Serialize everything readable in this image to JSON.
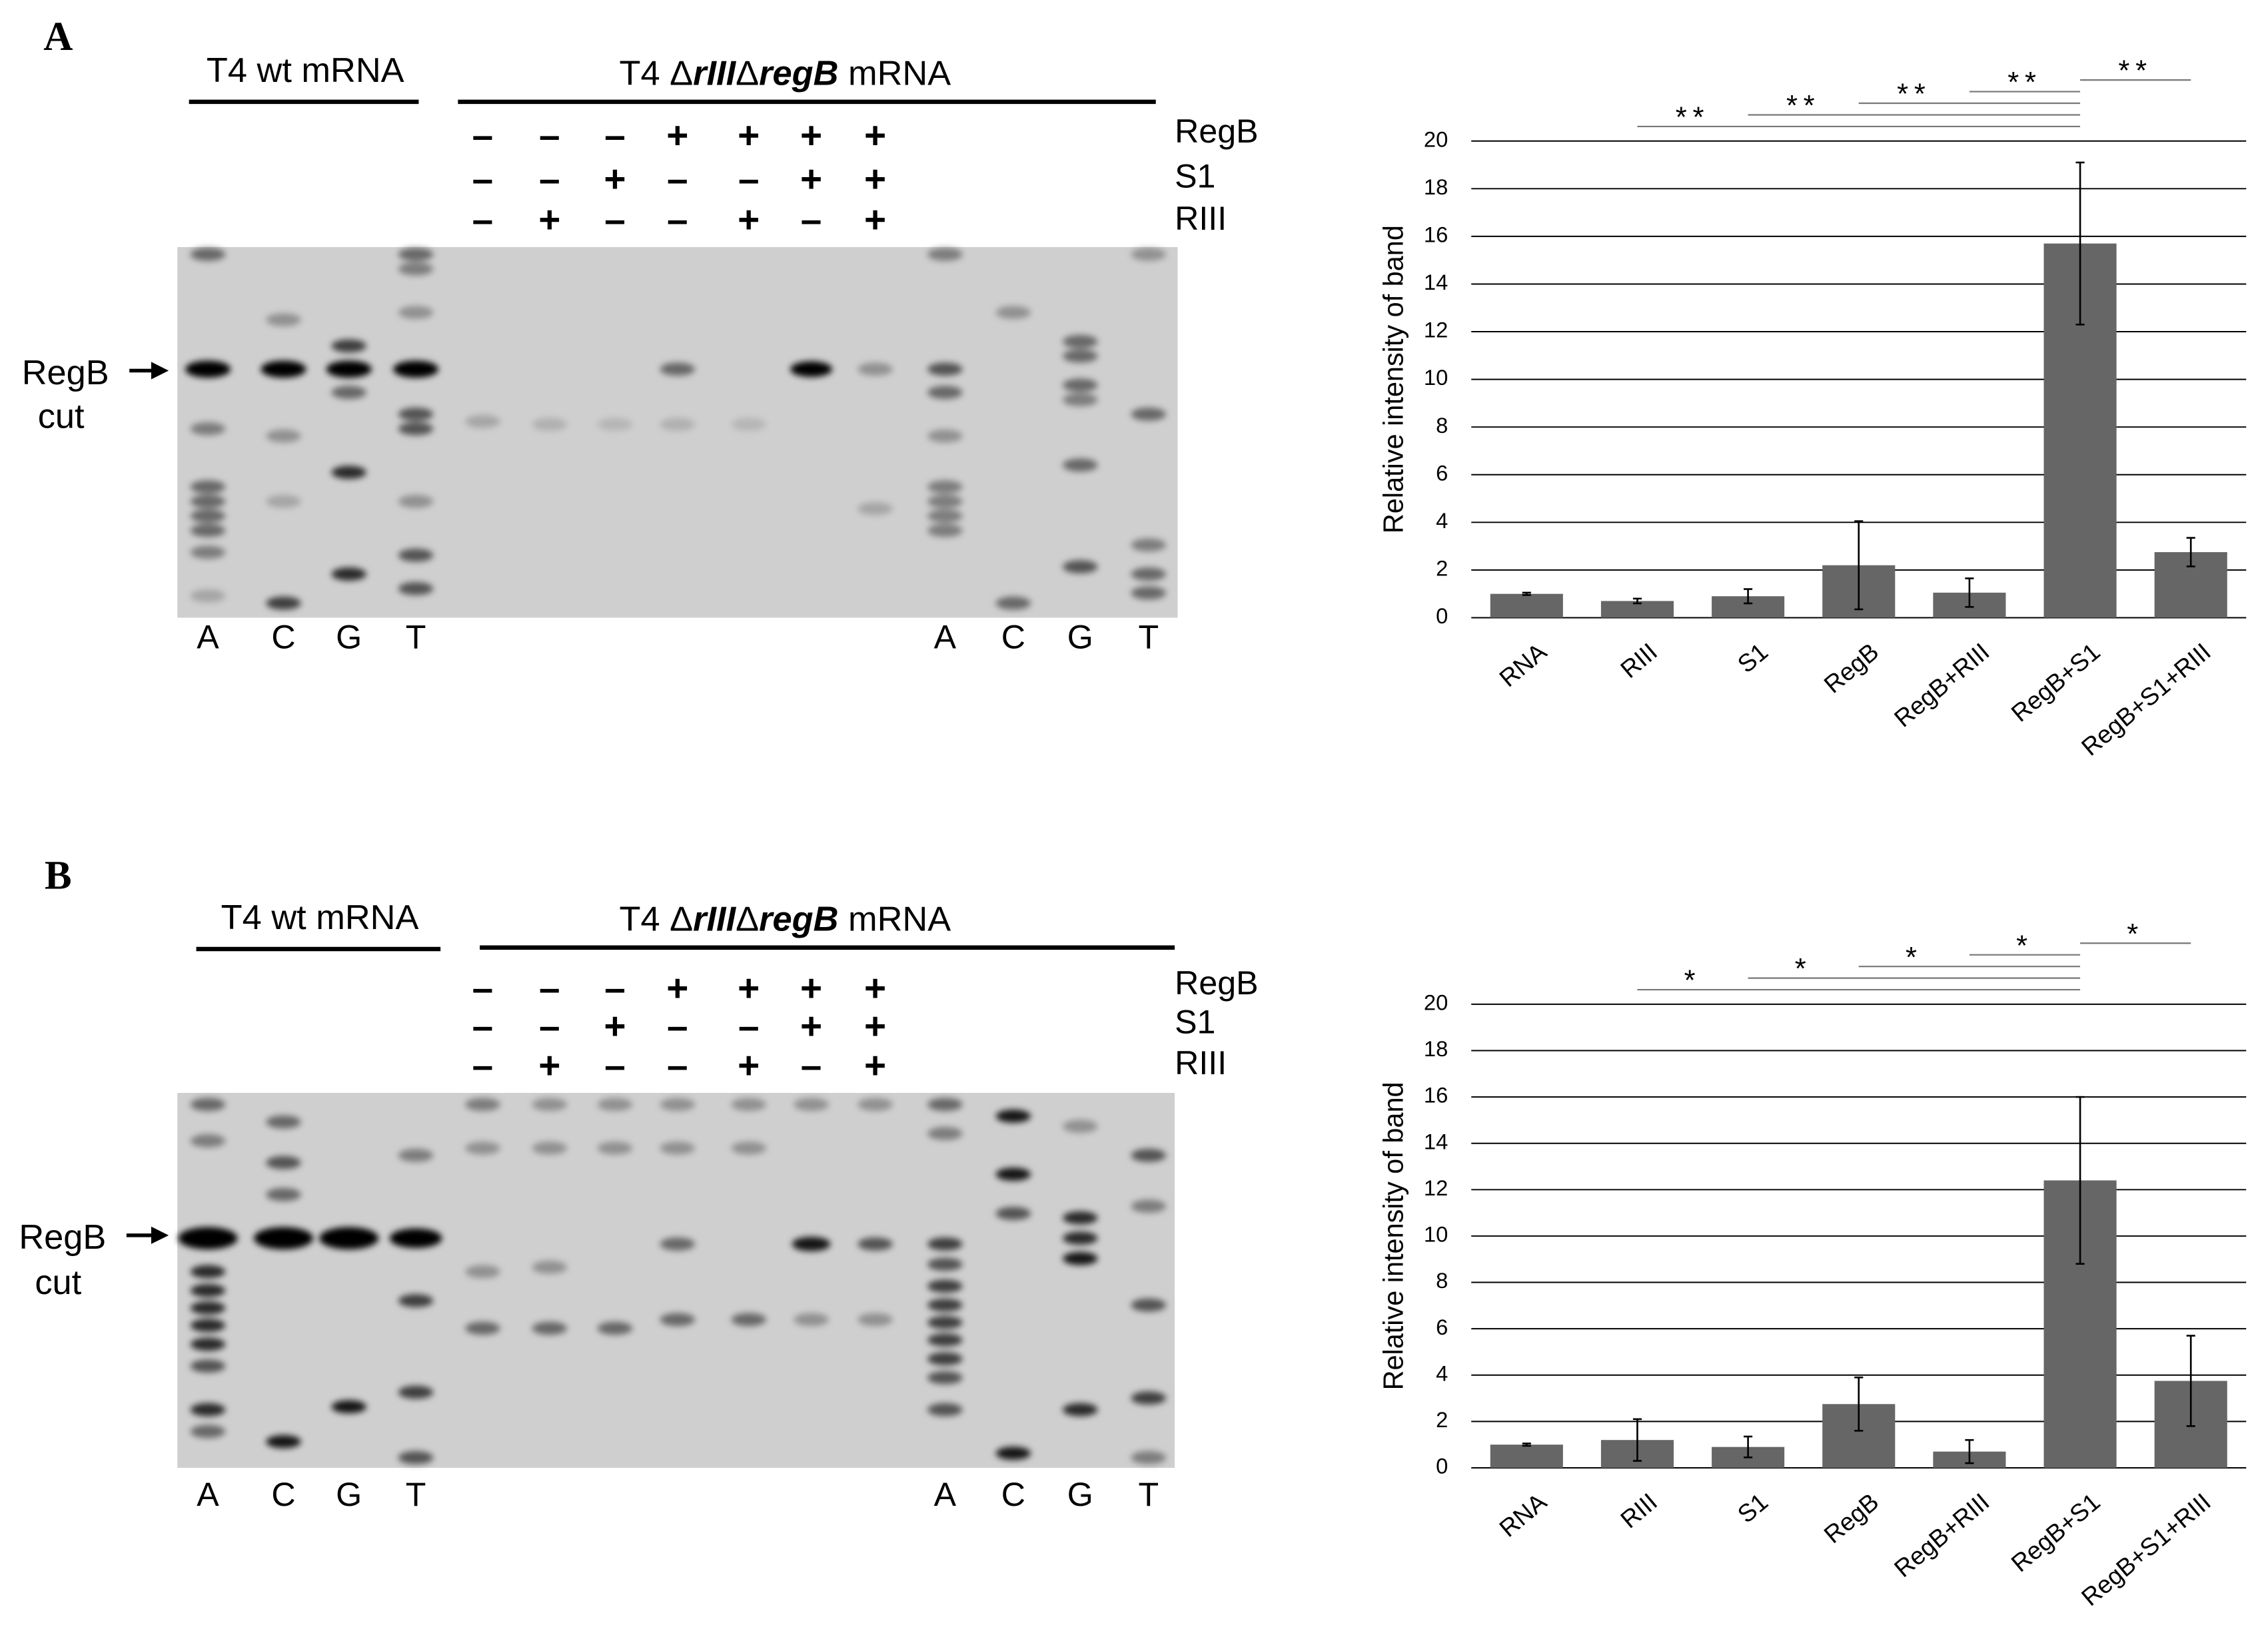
{
  "panels": [
    {
      "label": "A",
      "gel": {
        "title_wt": "T4 wt mRNA",
        "title_mut": [
          {
            "text": "T4 Δ"
          },
          {
            "text": "rIII",
            "italic": true
          },
          {
            "text": "Δ"
          },
          {
            "text": "regB",
            "italic": true
          },
          {
            "text": " mRNA"
          }
        ],
        "conditions": [
          {
            "name": "RegB",
            "signs": [
              "–",
              "–",
              "–",
              "+",
              "+",
              "+",
              "+"
            ]
          },
          {
            "name": "S1",
            "signs": [
              "–",
              "–",
              "+",
              "–",
              "–",
              "+",
              "+"
            ]
          },
          {
            "name": "RIII",
            "signs": [
              "–",
              "+",
              "–",
              "–",
              "+",
              "–",
              "+"
            ]
          }
        ],
        "lanes_left": [
          "A",
          "C",
          "G",
          "T"
        ],
        "lanes_right": [
          "A",
          "C",
          "G",
          "T"
        ],
        "marker": [
          "RegB",
          "cut"
        ]
      }
    },
    {
      "label": "B",
      "gel": {
        "title_wt": "T4 wt mRNA",
        "title_mut": [
          {
            "text": "T4 Δ"
          },
          {
            "text": "rIII",
            "italic": true
          },
          {
            "text": "Δ"
          },
          {
            "text": "regB",
            "italic": true
          },
          {
            "text": " mRNA"
          }
        ],
        "conditions": [
          {
            "name": "RegB",
            "signs": [
              "–",
              "–",
              "–",
              "+",
              "+",
              "+",
              "+"
            ]
          },
          {
            "name": "S1",
            "signs": [
              "–",
              "–",
              "+",
              "–",
              "–",
              "+",
              "+"
            ]
          },
          {
            "name": "RIII",
            "signs": [
              "–",
              "+",
              "–",
              "–",
              "+",
              "–",
              "+"
            ]
          }
        ],
        "lanes_left": [
          "A",
          "C",
          "G",
          "T"
        ],
        "lanes_right": [
          "A",
          "C",
          "G",
          "T"
        ],
        "marker": [
          "RegB",
          "cut"
        ]
      }
    }
  ],
  "chart_data": [
    {
      "type": "bar",
      "y_label": "Relative intensity of band",
      "color": "#666666",
      "grid": true,
      "categories": [
        "RNA",
        "RIII",
        "S1",
        "RegB",
        "RegB+RIII",
        "RegB+S1",
        "RegB+S1+RIII"
      ],
      "values": [
        1.0,
        0.7,
        0.9,
        2.2,
        1.05,
        15.7,
        2.75
      ],
      "errors": [
        0.05,
        0.1,
        0.3,
        1.85,
        0.6,
        3.4,
        0.6
      ],
      "ylim": [
        0,
        20
      ],
      "yticks": [
        0,
        2,
        4,
        6,
        8,
        10,
        12,
        14,
        16,
        18,
        20
      ],
      "comparisons": [
        {
          "groups": [
            "RIII",
            "RegB+S1"
          ],
          "label": "**"
        },
        {
          "groups": [
            "S1",
            "RegB+S1"
          ],
          "label": "**"
        },
        {
          "groups": [
            "RegB",
            "RegB+S1"
          ],
          "label": "**"
        },
        {
          "groups": [
            "RegB+RIII",
            "RegB+S1"
          ],
          "label": "**"
        },
        {
          "groups": [
            "RegB+S1",
            "RegB+S1+RIII"
          ],
          "label": "**"
        }
      ]
    },
    {
      "type": "bar",
      "y_label": "Relative intensity of band",
      "color": "#666666",
      "grid": true,
      "categories": [
        "RNA",
        "RIII",
        "S1",
        "RegB",
        "RegB+RIII",
        "RegB+S1",
        "RegB+S1+RIII"
      ],
      "values": [
        1.0,
        1.2,
        0.9,
        2.75,
        0.7,
        12.4,
        3.75
      ],
      "errors": [
        0.05,
        0.9,
        0.45,
        1.15,
        0.5,
        3.6,
        1.95
      ],
      "ylim": [
        0,
        20
      ],
      "yticks": [
        0,
        2,
        4,
        6,
        8,
        10,
        12,
        14,
        16,
        18,
        20
      ],
      "comparisons": [
        {
          "groups": [
            "RIII",
            "RegB+S1"
          ],
          "label": "*"
        },
        {
          "groups": [
            "S1",
            "RegB+S1"
          ],
          "label": "*"
        },
        {
          "groups": [
            "RegB",
            "RegB+S1"
          ],
          "label": "*"
        },
        {
          "groups": [
            "RegB+RIII",
            "RegB+S1"
          ],
          "label": "*"
        },
        {
          "groups": [
            "RegB+S1",
            "RegB+S1+RIII"
          ],
          "label": "*"
        }
      ]
    }
  ]
}
